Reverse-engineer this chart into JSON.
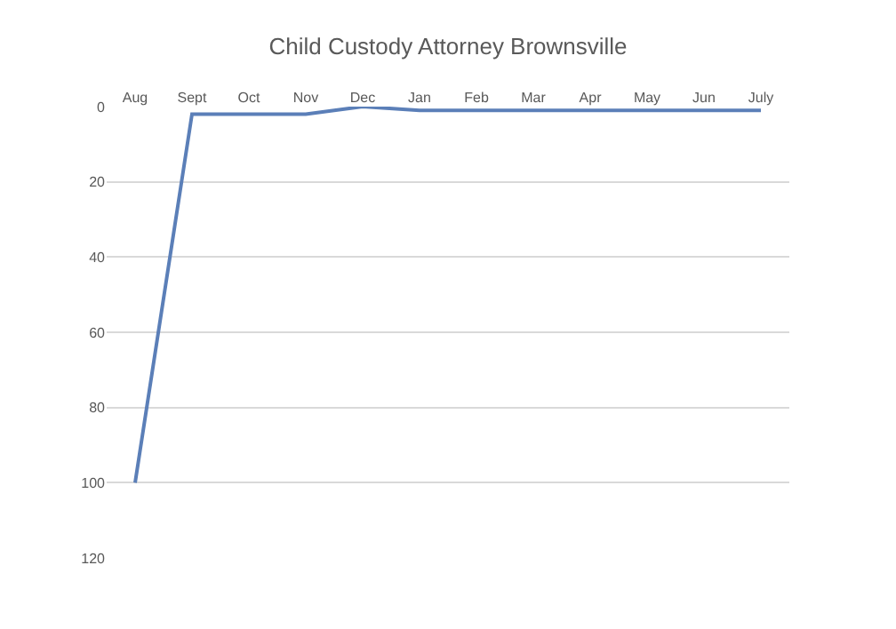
{
  "chart_data": {
    "type": "line",
    "title": "Child Custody Attorney Brownsville",
    "categories": [
      "Aug",
      "Sept",
      "Oct",
      "Nov",
      "Dec",
      "Jan",
      "Feb",
      "Mar",
      "Apr",
      "May",
      "Jun",
      "July"
    ],
    "series": [
      {
        "color": "#5b7fb8",
        "values": [
          100,
          2,
          2,
          2,
          0,
          1,
          1,
          1,
          1,
          1,
          1,
          1
        ]
      }
    ],
    "ylim": [
      120,
      0
    ],
    "yticks": [
      0,
      20,
      40,
      60,
      80,
      100,
      120
    ],
    "grid": "y",
    "marker": "none",
    "line_style": "solid"
  }
}
